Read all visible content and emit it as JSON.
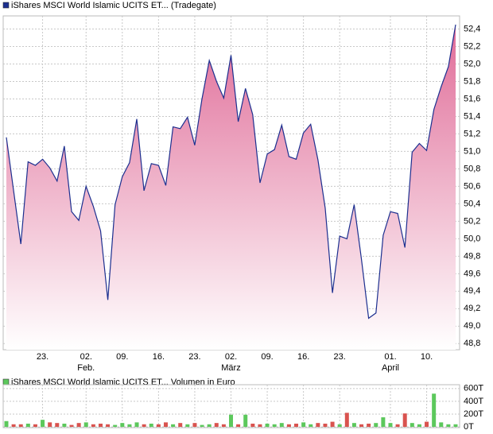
{
  "chart_data": [
    {
      "type": "line",
      "fill": true,
      "legend": "iShares MSCI World Islamic UCITS ET... (Tradegate)",
      "color": "#1c2f8f",
      "fill_top": "#e06c98",
      "fill_bottom": "#ffffff",
      "grid": true,
      "categories": [
        null,
        null,
        null,
        null,
        null,
        "23.",
        null,
        null,
        null,
        null,
        null,
        {
          "label": "02.",
          "month": "Feb."
        },
        null,
        null,
        null,
        null,
        "09.",
        null,
        null,
        null,
        null,
        "16.",
        null,
        null,
        null,
        null,
        "23.",
        null,
        null,
        null,
        null,
        {
          "label": "02.",
          "month": "März"
        },
        null,
        null,
        null,
        null,
        "09.",
        null,
        null,
        null,
        null,
        "16.",
        null,
        null,
        null,
        null,
        "23.",
        null,
        null,
        null,
        null,
        null,
        null,
        {
          "label": "01.",
          "month": "April"
        },
        null,
        null,
        null,
        null,
        "10.",
        null,
        null,
        null,
        null
      ],
      "values": [
        51.16,
        50.55,
        49.94,
        50.88,
        50.84,
        50.91,
        50.81,
        50.66,
        51.06,
        50.31,
        50.21,
        50.6,
        50.37,
        50.09,
        49.3,
        50.39,
        50.71,
        50.87,
        51.37,
        50.55,
        50.86,
        50.84,
        50.61,
        51.28,
        51.26,
        51.39,
        51.07,
        51.6,
        52.04,
        51.8,
        51.61,
        52.1,
        51.34,
        51.72,
        51.42,
        50.64,
        50.97,
        51.02,
        51.3,
        50.94,
        50.91,
        51.21,
        51.31,
        50.9,
        50.35,
        49.38,
        50.03,
        50.0,
        50.39,
        49.77,
        49.09,
        49.15,
        50.04,
        50.31,
        50.29,
        49.9,
        50.99,
        51.09,
        51.01,
        51.48,
        51.74,
        51.97,
        52.45
      ],
      "ylim": [
        48.73,
        52.55
      ],
      "yticks": [
        {
          "value": 48.8,
          "label": "48,8"
        },
        {
          "value": 49.0,
          "label": "49,0"
        },
        {
          "value": 49.2,
          "label": "49,2"
        },
        {
          "value": 49.4,
          "label": "49,4"
        },
        {
          "value": 49.6,
          "label": "49,6"
        },
        {
          "value": 49.8,
          "label": "49,8"
        },
        {
          "value": 50.0,
          "label": "50,0"
        },
        {
          "value": 50.2,
          "label": "50,2"
        },
        {
          "value": 50.4,
          "label": "50,4"
        },
        {
          "value": 50.6,
          "label": "50,6"
        },
        {
          "value": 50.8,
          "label": "50,8"
        },
        {
          "value": 51.0,
          "label": "51,0"
        },
        {
          "value": 51.2,
          "label": "51,2"
        },
        {
          "value": 51.4,
          "label": "51,4"
        },
        {
          "value": 51.6,
          "label": "51,6"
        },
        {
          "value": 51.8,
          "label": "51,8"
        },
        {
          "value": 52.0,
          "label": "52,0"
        },
        {
          "value": 52.2,
          "label": "52,2"
        },
        {
          "value": 52.4,
          "label": "52,4"
        }
      ]
    },
    {
      "type": "bar",
      "legend": "iShares MSCI World Islamic UCITS ET... Volumen in Euro",
      "color": "#5cc85c",
      "up_color": "#5cc85c",
      "down_color": "#d9534f",
      "grid": true,
      "values": [
        90,
        40,
        40,
        50,
        40,
        110,
        70,
        60,
        50,
        30,
        60,
        70,
        40,
        50,
        40,
        30,
        60,
        40,
        70,
        40,
        50,
        40,
        70,
        40,
        60,
        40,
        60,
        30,
        40,
        60,
        40,
        190,
        40,
        190,
        50,
        40,
        50,
        40,
        60,
        40,
        50,
        70,
        40,
        60,
        50,
        80,
        40,
        220,
        60,
        40,
        50,
        60,
        150,
        60,
        40,
        210,
        60,
        40,
        80,
        520,
        70,
        40,
        40
      ],
      "ylim": [
        0,
        660
      ],
      "yticks": [
        {
          "value": 0,
          "label": "0T"
        },
        {
          "value": 200,
          "label": "200T"
        },
        {
          "value": 400,
          "label": "400T"
        },
        {
          "value": 600,
          "label": "600T"
        }
      ]
    }
  ]
}
